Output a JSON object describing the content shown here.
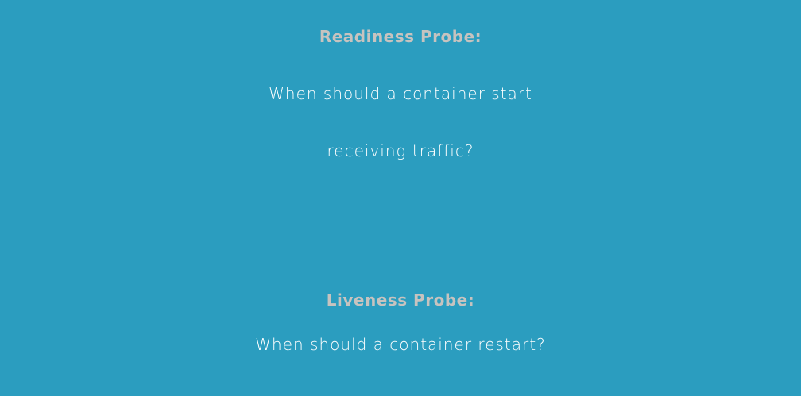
{
  "slide": {
    "readiness": {
      "title": "Readiness Probe:",
      "question_line1": "When should a container start",
      "question_line2": "receiving traffic?"
    },
    "liveness": {
      "title": "Liveness Probe:",
      "question": "When should a container restart?"
    }
  },
  "colors": {
    "background": "#2b9dbf",
    "heading": "#c7c3bf",
    "question": "#ffffff"
  }
}
